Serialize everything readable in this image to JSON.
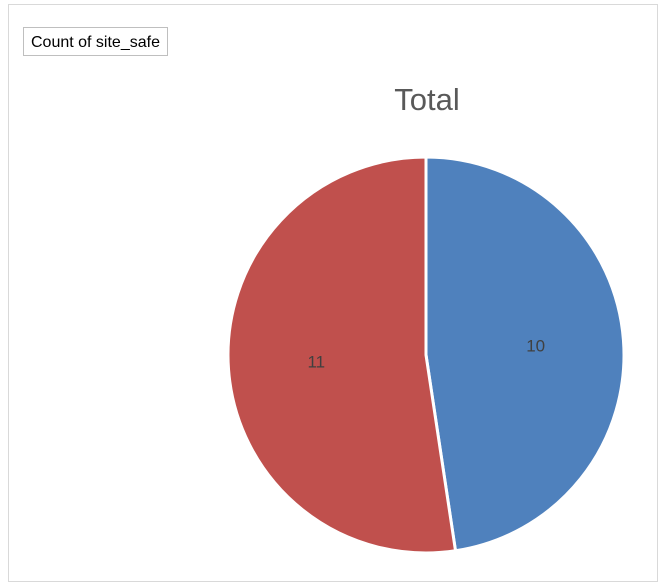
{
  "field_button": {
    "label": "Count of site_safe"
  },
  "chart_data": {
    "type": "pie",
    "title": "Total",
    "slices": [
      {
        "value": 10,
        "label": "10",
        "color": "#4f81bd"
      },
      {
        "value": 11,
        "label": "11",
        "color": "#c0504d"
      }
    ],
    "start_angle_deg": 0,
    "direction": "clockwise"
  }
}
